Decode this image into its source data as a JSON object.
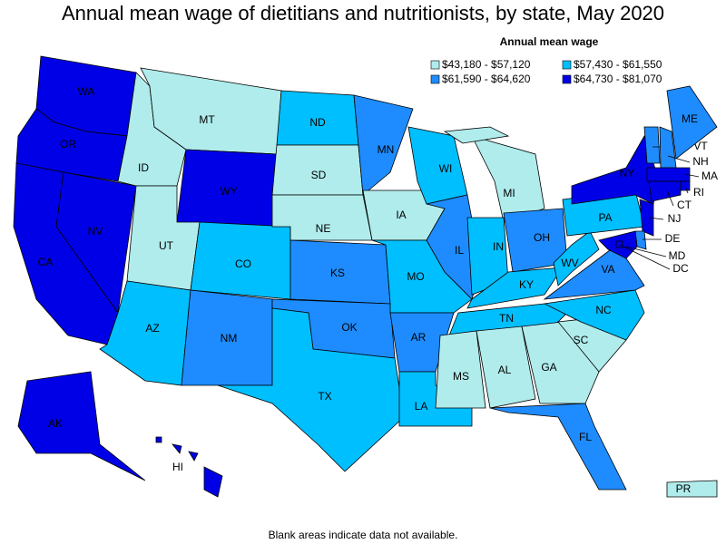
{
  "title": "Annual mean wage of dietitians and nutritionists, by state, May 2020",
  "legend": {
    "title": "Annual mean wage",
    "items": [
      {
        "label": "$43,180 - $57,120",
        "color": "#b0ecec"
      },
      {
        "label": "$57,430 - $61,550",
        "color": "#00bfff"
      },
      {
        "label": "$61,590 - $64,620",
        "color": "#1e8cff"
      },
      {
        "label": "$64,730 - $81,070",
        "color": "#0000e6"
      }
    ]
  },
  "states": [
    {
      "abbr": "WA",
      "range": 3
    },
    {
      "abbr": "OR",
      "range": 3
    },
    {
      "abbr": "CA",
      "range": 3
    },
    {
      "abbr": "NV",
      "range": 3
    },
    {
      "abbr": "ID",
      "range": 0
    },
    {
      "abbr": "MT",
      "range": 0
    },
    {
      "abbr": "WY",
      "range": 3
    },
    {
      "abbr": "UT",
      "range": 0
    },
    {
      "abbr": "AZ",
      "range": 1
    },
    {
      "abbr": "CO",
      "range": 1
    },
    {
      "abbr": "NM",
      "range": 2
    },
    {
      "abbr": "ND",
      "range": 1
    },
    {
      "abbr": "SD",
      "range": 0
    },
    {
      "abbr": "NE",
      "range": 0
    },
    {
      "abbr": "KS",
      "range": 2
    },
    {
      "abbr": "OK",
      "range": 2
    },
    {
      "abbr": "TX",
      "range": 1
    },
    {
      "abbr": "MN",
      "range": 2
    },
    {
      "abbr": "IA",
      "range": 0
    },
    {
      "abbr": "MO",
      "range": 1
    },
    {
      "abbr": "AR",
      "range": 2
    },
    {
      "abbr": "LA",
      "range": 1
    },
    {
      "abbr": "WI",
      "range": 1
    },
    {
      "abbr": "IL",
      "range": 2
    },
    {
      "abbr": "MI",
      "range": 0
    },
    {
      "abbr": "IN",
      "range": 1
    },
    {
      "abbr": "OH",
      "range": 2
    },
    {
      "abbr": "KY",
      "range": 1
    },
    {
      "abbr": "TN",
      "range": 1
    },
    {
      "abbr": "MS",
      "range": 0
    },
    {
      "abbr": "AL",
      "range": 0
    },
    {
      "abbr": "GA",
      "range": 0
    },
    {
      "abbr": "FL",
      "range": 2
    },
    {
      "abbr": "SC",
      "range": 0
    },
    {
      "abbr": "NC",
      "range": 1
    },
    {
      "abbr": "VA",
      "range": 2
    },
    {
      "abbr": "WV",
      "range": 1
    },
    {
      "abbr": "PA",
      "range": 1
    },
    {
      "abbr": "NY",
      "range": 3
    },
    {
      "abbr": "VT",
      "range": 2
    },
    {
      "abbr": "NH",
      "range": 2
    },
    {
      "abbr": "ME",
      "range": 2
    },
    {
      "abbr": "MA",
      "range": 3
    },
    {
      "abbr": "RI",
      "range": 3
    },
    {
      "abbr": "CT",
      "range": 3
    },
    {
      "abbr": "NJ",
      "range": 3
    },
    {
      "abbr": "DE",
      "range": 2
    },
    {
      "abbr": "MD",
      "range": 3
    },
    {
      "abbr": "DC",
      "range": 3
    },
    {
      "abbr": "AK",
      "range": 3
    },
    {
      "abbr": "HI",
      "range": 3
    },
    {
      "abbr": "PR",
      "range": 0
    }
  ],
  "footnote": "Blank areas indicate data not available."
}
